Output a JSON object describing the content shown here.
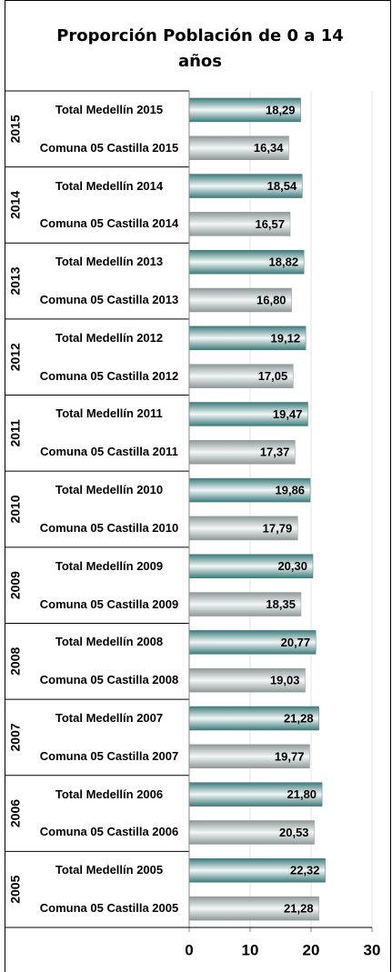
{
  "chart_data": {
    "type": "bar",
    "orientation": "horizontal",
    "title": "Proporción Población de 0 a 14 años",
    "groups": [
      "2015",
      "2014",
      "2013",
      "2012",
      "2011",
      "2010",
      "2009",
      "2008",
      "2007",
      "2006",
      "2005"
    ],
    "categories": [
      "Total Medellín 2015",
      "Comuna 05 Castilla 2015",
      "Total Medellín 2014",
      "Comuna 05 Castilla 2014",
      "Total Medellín 2013",
      "Comuna 05 Castilla 2013",
      "Total Medellín 2012",
      "Comuna 05 Castilla 2012",
      "Total Medellín 2011",
      "Comuna 05 Castilla 2011",
      "Total Medellín 2010",
      "Comuna 05 Castilla 2010",
      "Total Medellín 2009",
      "Comuna 05 Castilla 2009",
      "Total Medellín 2008",
      "Comuna 05 Castilla 2008",
      "Total Medellín 2007",
      "Comuna 05 Castilla 2007",
      "Total Medellín 2006",
      "Comuna 05 Castilla 2006",
      "Total Medellín 2005",
      "Comuna 05 Castilla 2005"
    ],
    "values": [
      18.29,
      16.34,
      18.54,
      16.57,
      18.82,
      16.8,
      19.12,
      17.05,
      19.47,
      17.37,
      19.86,
      17.79,
      20.3,
      18.35,
      20.77,
      19.03,
      21.28,
      19.77,
      21.8,
      20.53,
      22.32,
      21.28
    ],
    "value_labels": [
      "18,29",
      "16,34",
      "18,54",
      "16,57",
      "18,82",
      "16,80",
      "19,12",
      "17,05",
      "19,47",
      "17,37",
      "19,86",
      "17,79",
      "20,30",
      "18,35",
      "20,77",
      "19,03",
      "21,28",
      "19,77",
      "21,80",
      "20,53",
      "22,32",
      "21,28"
    ],
    "colors": [
      "#3d7b7b",
      "#8f9999"
    ],
    "xlim": [
      0,
      30
    ],
    "xticks": [
      0,
      10,
      20,
      30
    ],
    "grid": true
  }
}
